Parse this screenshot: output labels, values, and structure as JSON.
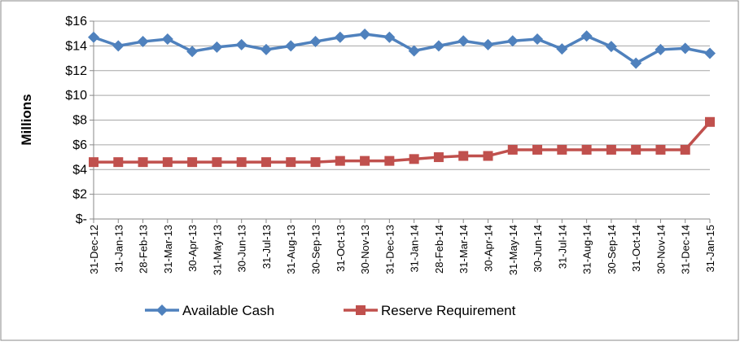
{
  "chart_data": {
    "type": "line",
    "y_label": "Millions",
    "categories": [
      "31-Dec-12",
      "31-Jan-13",
      "28-Feb-13",
      "31-Mar-13",
      "30-Apr-13",
      "31-May-13",
      "30-Jun-13",
      "31-Jul-13",
      "31-Aug-13",
      "30-Sep-13",
      "31-Oct-13",
      "30-Nov-13",
      "31-Dec-13",
      "31-Jan-14",
      "28-Feb-14",
      "31-Mar-14",
      "30-Apr-14",
      "31-May-14",
      "30-Jun-14",
      "31-Jul-14",
      "31-Aug-14",
      "30-Sep-14",
      "31-Oct-14",
      "30-Nov-14",
      "31-Dec-14",
      "31-Jan-15"
    ],
    "series": [
      {
        "name": "Available Cash",
        "color": "#4f81bd",
        "marker": "diamond",
        "values": [
          14.7,
          14.0,
          14.35,
          14.55,
          13.55,
          13.9,
          14.1,
          13.7,
          14.0,
          14.35,
          14.7,
          14.95,
          14.7,
          13.6,
          14.0,
          14.4,
          14.1,
          14.4,
          14.55,
          13.75,
          14.8,
          13.95,
          12.6,
          13.7,
          13.8,
          13.4
        ]
      },
      {
        "name": "Reserve Requirement",
        "color": "#c0504d",
        "marker": "square",
        "values": [
          4.6,
          4.6,
          4.6,
          4.6,
          4.6,
          4.6,
          4.6,
          4.6,
          4.6,
          4.6,
          4.7,
          4.7,
          4.7,
          4.85,
          5.0,
          5.1,
          5.1,
          5.6,
          5.6,
          5.6,
          5.6,
          5.6,
          5.6,
          5.6,
          5.6,
          7.85
        ]
      }
    ],
    "ylim": [
      0,
      16
    ],
    "yticks": [
      {
        "value": 0,
        "label": "$-"
      },
      {
        "value": 2,
        "label": "$2"
      },
      {
        "value": 4,
        "label": "$4"
      },
      {
        "value": 6,
        "label": "$6"
      },
      {
        "value": 8,
        "label": "$8"
      },
      {
        "value": 10,
        "label": "$10"
      },
      {
        "value": 12,
        "label": "$12"
      },
      {
        "value": 14,
        "label": "$14"
      },
      {
        "value": 16,
        "label": "$16"
      }
    ],
    "grid": true,
    "legend": "bottom"
  }
}
